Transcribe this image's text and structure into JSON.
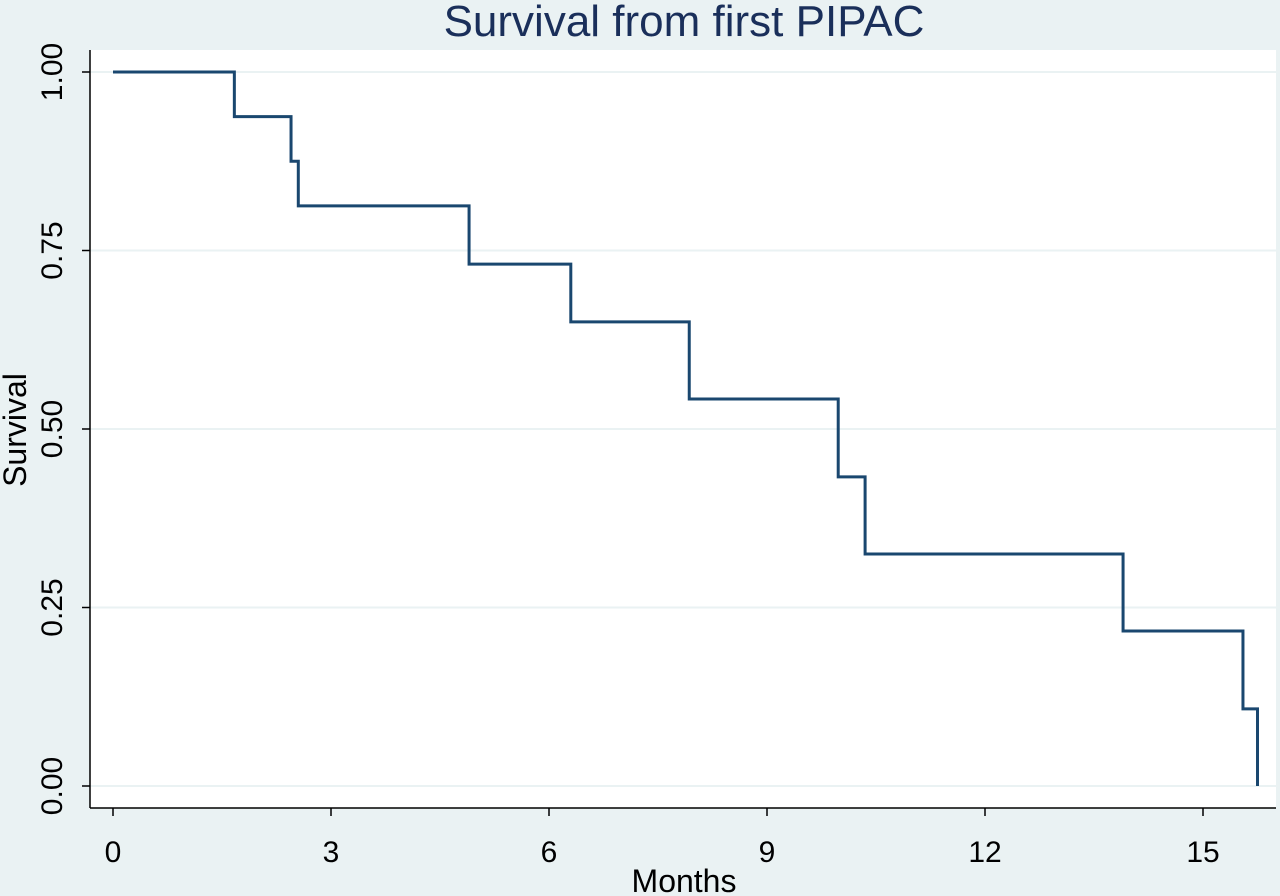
{
  "chart_data": {
    "type": "line",
    "subtype": "step",
    "title": "Survival from first PIPAC",
    "xlabel": "Months",
    "ylabel": "Survival",
    "xlim": [
      0,
      15.8
    ],
    "ylim": [
      0,
      1
    ],
    "xticks": [
      0,
      3,
      6,
      9,
      12,
      15
    ],
    "xtick_labels": [
      "0",
      "3",
      "6",
      "9",
      "12",
      "15"
    ],
    "yticks": [
      0,
      0.25,
      0.5,
      0.75,
      1
    ],
    "ytick_labels": [
      "0.00",
      "0.25",
      "0.50",
      "0.75",
      "1.00"
    ],
    "grid": "horizontal",
    "legend": "none",
    "series": [
      {
        "x": [
          0,
          1.67,
          2.45,
          2.55,
          4.9,
          6.3,
          7.93,
          9.98,
          10.35,
          13.9,
          15.55,
          15.75
        ],
        "y": [
          1.0,
          0.9375,
          0.875,
          0.8125,
          0.731,
          0.65,
          0.542,
          0.433,
          0.325,
          0.217,
          0.108,
          0.0
        ]
      }
    ],
    "colors": {
      "background": "#eaf2f3",
      "plot_area": "#ffffff",
      "line": "#1a476f",
      "grid": "#eaf2f3",
      "title": "#1a2f5a"
    }
  }
}
